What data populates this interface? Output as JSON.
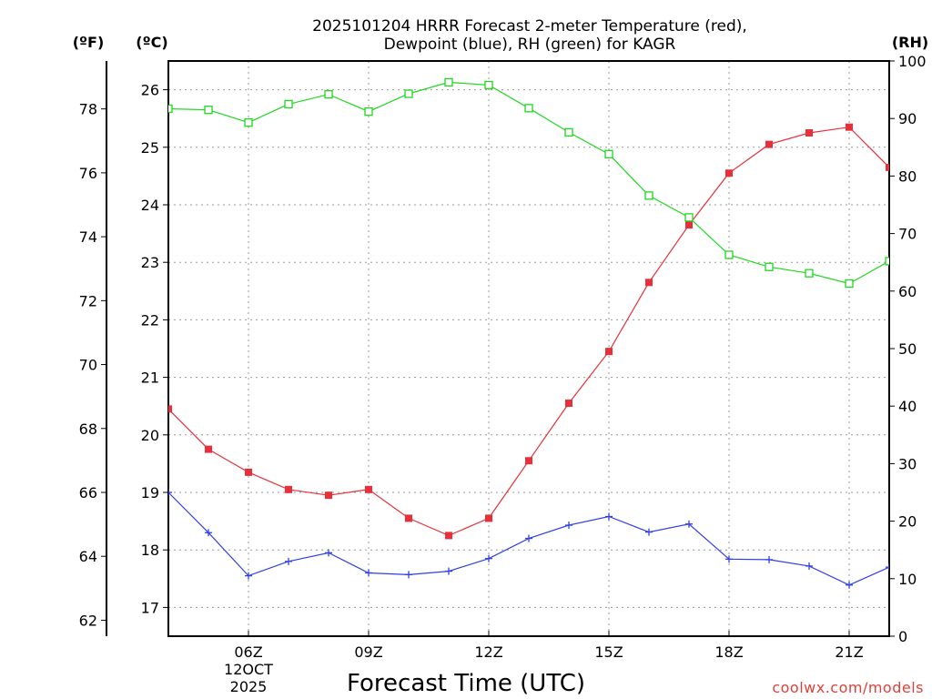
{
  "chart_data": {
    "type": "line",
    "title_line1": "2025101204 HRRR Forecast 2-meter Temperature (red),",
    "title_line2": "Dewpoint (blue), RH (green) for KAGR",
    "xlabel": "Forecast Time (UTC)",
    "credit": "coolwx.com/models",
    "axes": {
      "fahrenheit": {
        "label": "(ºF)",
        "ticks": [
          62,
          64,
          66,
          68,
          70,
          72,
          74,
          76,
          78
        ],
        "range": [
          61.5,
          79.5
        ]
      },
      "celsius": {
        "label": "(ºC)",
        "ticks": [
          17,
          18,
          19,
          20,
          21,
          22,
          23,
          24,
          25,
          26
        ],
        "range": [
          16.5,
          26.5
        ]
      },
      "rh": {
        "label": "(RH)",
        "ticks": [
          0,
          10,
          20,
          30,
          40,
          50,
          60,
          70,
          80,
          90,
          100
        ],
        "range": [
          0,
          100
        ]
      }
    },
    "x_hours": [
      4,
      5,
      6,
      7,
      8,
      9,
      10,
      11,
      12,
      13,
      14,
      15,
      16,
      17,
      18,
      19,
      20,
      21,
      22
    ],
    "x_range": [
      4,
      22
    ],
    "x_ticks": [
      {
        "hour": 6,
        "label": "06Z",
        "sub1": "12OCT",
        "sub2": "2025"
      },
      {
        "hour": 9,
        "label": "09Z"
      },
      {
        "hour": 12,
        "label": "12Z"
      },
      {
        "hour": 15,
        "label": "15Z"
      },
      {
        "hour": 18,
        "label": "18Z"
      },
      {
        "hour": 21,
        "label": "21Z"
      }
    ],
    "series": [
      {
        "name": "Temperature",
        "units": "C",
        "color": "#e8303a",
        "marker": "filled-square",
        "values": [
          20.45,
          19.75,
          19.35,
          19.05,
          18.95,
          19.05,
          18.55,
          18.25,
          18.55,
          19.55,
          20.55,
          21.45,
          22.65,
          23.65,
          24.55,
          25.05,
          25.25,
          25.35,
          24.65
        ]
      },
      {
        "name": "Dewpoint",
        "units": "C",
        "color": "#3040e8",
        "marker": "plus",
        "values": [
          19.0,
          18.3,
          17.55,
          17.8,
          17.95,
          17.6,
          17.57,
          17.63,
          17.85,
          18.2,
          18.43,
          18.58,
          18.31,
          18.45,
          17.84,
          17.83,
          17.72,
          17.39,
          17.7
        ]
      },
      {
        "name": "RH",
        "units": "%",
        "color": "#20d820",
        "marker": "open-square",
        "values": [
          91.7,
          91.5,
          89.3,
          92.5,
          94.2,
          91.2,
          94.3,
          96.3,
          95.8,
          91.8,
          87.6,
          83.8,
          76.6,
          72.8,
          66.3,
          64.2,
          63.1,
          61.3,
          65.2
        ]
      }
    ]
  }
}
